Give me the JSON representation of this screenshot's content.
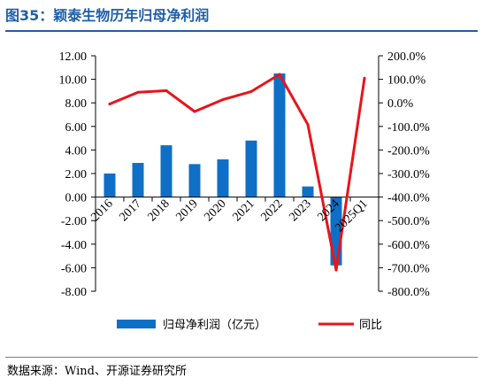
{
  "header": {
    "title": "图35：颖泰生物历年归母净利润"
  },
  "footer": {
    "source": "数据来源：Wind、开源证券研究所"
  },
  "chart_data": {
    "type": "bar",
    "categories": [
      "2016",
      "2017",
      "2018",
      "2019",
      "2020",
      "2021",
      "2022",
      "2023",
      "2024",
      "2025Q1"
    ],
    "series": [
      {
        "name": "归母净利润（亿元）",
        "type": "bar",
        "axis": "left",
        "color": "#0f6fc6",
        "values": [
          2.0,
          2.9,
          4.4,
          2.8,
          3.2,
          4.8,
          10.5,
          0.9,
          -5.8,
          null
        ]
      },
      {
        "name": "同比",
        "type": "line",
        "axis": "right",
        "color": "#e8141b",
        "values": [
          -5.0,
          45.0,
          52.0,
          -37.0,
          14.0,
          48.0,
          121.0,
          -92.0,
          -710.0,
          105.0
        ]
      }
    ],
    "y_left": {
      "min": -8,
      "max": 12,
      "step": 2,
      "ticks": [
        "12.00",
        "10.00",
        "8.00",
        "6.00",
        "4.00",
        "2.00",
        "0.00",
        "-2.00",
        "-4.00",
        "-6.00",
        "-8.00"
      ]
    },
    "y_right": {
      "min": -800,
      "max": 200,
      "step": 100,
      "ticks": [
        "200.0%",
        "100.0%",
        "0.0%",
        "-100.0%",
        "-200.0%",
        "-300.0%",
        "-400.0%",
        "-500.0%",
        "-600.0%",
        "-700.0%",
        "-800.0%"
      ]
    },
    "legend_position": "bottom",
    "grid": false
  }
}
